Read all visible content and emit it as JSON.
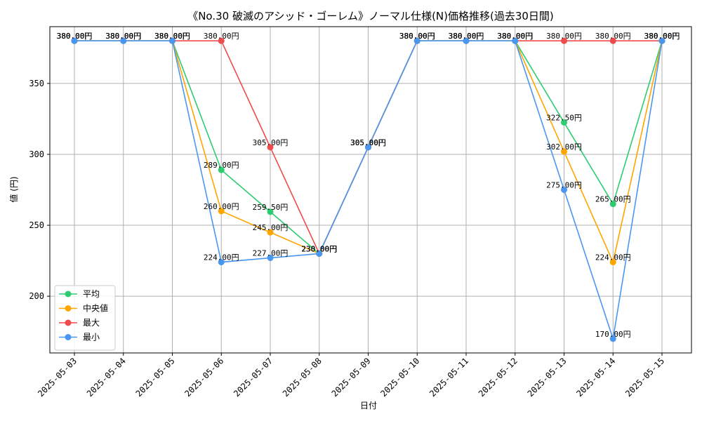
{
  "chart_data": {
    "type": "line",
    "title": "《No.30 破滅のアシッド・ゴーレム》ノーマル仕様(N)価格推移(過去30日間)",
    "xlabel": "日付",
    "ylabel": "値 (円)",
    "x": [
      "2025-05-03",
      "2025-05-04",
      "2025-05-05",
      "2025-05-06",
      "2025-05-07",
      "2025-05-08",
      "2025-05-09",
      "2025-05-10",
      "2025-05-11",
      "2025-05-12",
      "2025-05-13",
      "2025-05-14",
      "2025-05-15"
    ],
    "ylim": [
      160,
      390
    ],
    "yticks": [
      200,
      250,
      300,
      350
    ],
    "grid": true,
    "legend_position": "lower-left",
    "label_suffix": "円",
    "series": [
      {
        "name": "平均",
        "color": "#2ecc71",
        "values": [
          380,
          380,
          380,
          289,
          259.5,
          230,
          305,
          380,
          380,
          380,
          322.5,
          265,
          380
        ]
      },
      {
        "name": "中央値",
        "color": "#ffa500",
        "values": [
          380,
          380,
          380,
          260,
          245,
          230,
          305,
          380,
          380,
          380,
          302,
          224,
          380
        ]
      },
      {
        "name": "最大",
        "color": "#ef4b4b",
        "values": [
          380,
          380,
          380,
          380,
          305,
          230,
          305,
          380,
          380,
          380,
          380,
          380,
          380
        ]
      },
      {
        "name": "最小",
        "color": "#4a97f2",
        "values": [
          380,
          380,
          380,
          224,
          227,
          230,
          305,
          380,
          380,
          380,
          275,
          170,
          380
        ]
      }
    ]
  }
}
